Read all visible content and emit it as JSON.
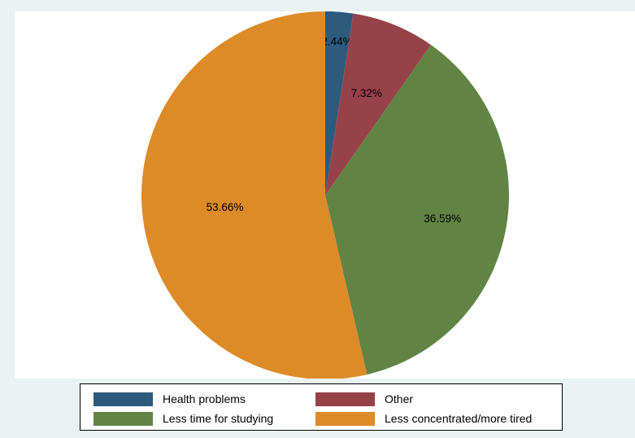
{
  "chart_data": {
    "type": "pie",
    "title": "",
    "categories": [
      "Health problems",
      "Other",
      "Less time for studying",
      "Less concentrated/more tired"
    ],
    "values": [
      2.44,
      7.32,
      36.59,
      53.66
    ],
    "labels": [
      "2.44%",
      "7.32%",
      "36.59%",
      "53.66%"
    ],
    "colors": [
      "#2e5a7e",
      "#974249",
      "#618444",
      "#dd8b28"
    ],
    "start_angle_deg": 0,
    "direction": "clockwise",
    "legend": {
      "placement": "bottom",
      "columns": 2,
      "entries": [
        {
          "label": "Health problems",
          "color": "#2e5a7e"
        },
        {
          "label": "Other",
          "color": "#974249"
        },
        {
          "label": "Less time for studying",
          "color": "#618444"
        },
        {
          "label": "Less concentrated/more tired",
          "color": "#dd8b28"
        }
      ]
    }
  }
}
